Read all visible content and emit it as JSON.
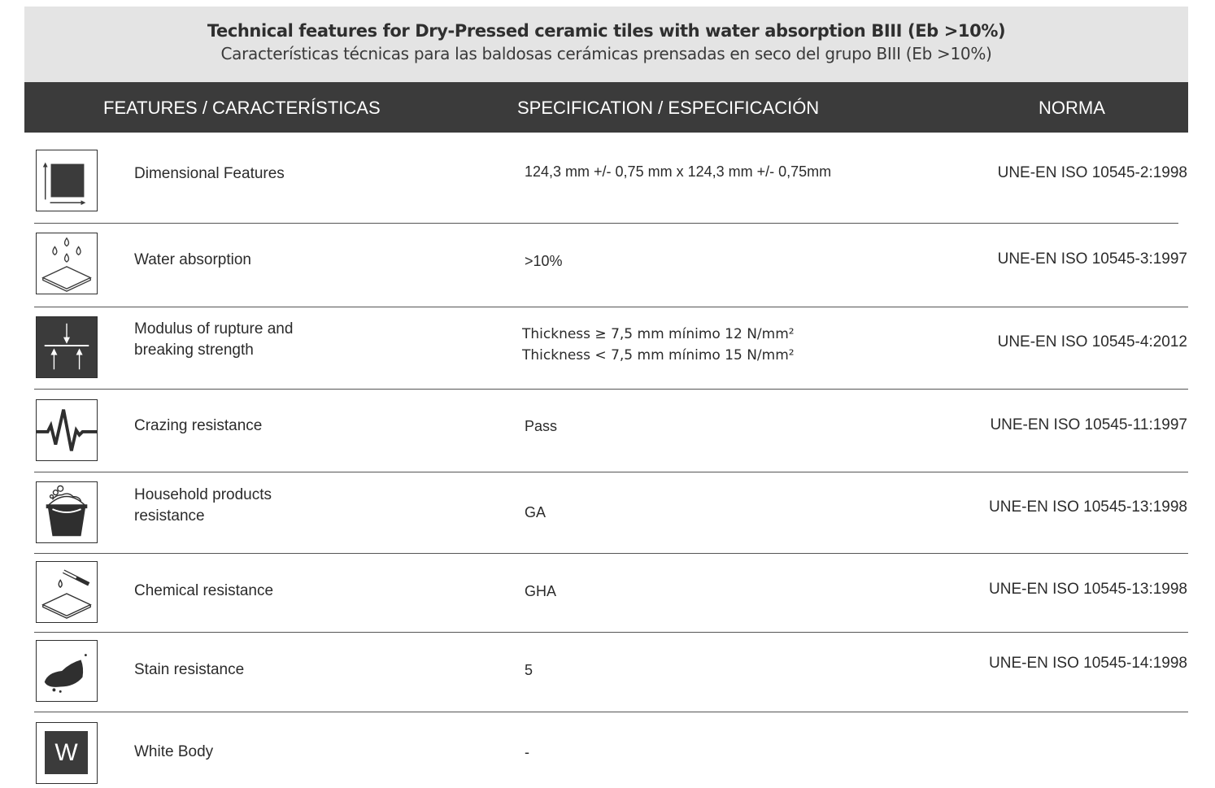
{
  "title": {
    "english": "Technical features for Dry-Pressed ceramic tiles with water absorption BIII (Eb >10%)",
    "spanish": "Características técnicas para las baldosas cerámicas prensadas en seco del grupo BIII (Eb >10%)"
  },
  "header": {
    "features": "FEATURES / CARACTERÍSTICAS",
    "specification": "SPECIFICATION / ESPECIFICACIÓN",
    "norma": "NORMA"
  },
  "rows": [
    {
      "icon": "dimensional-icon",
      "feature": "Dimensional Features",
      "spec": "124,3 mm +/- 0,75 mm x 124,3 mm +/- 0,75mm",
      "norma": "UNE-EN ISO 10545-2:1998"
    },
    {
      "icon": "water-drops-icon",
      "feature": "Water absorption",
      "spec": ">10%",
      "norma": "UNE-EN ISO 10545-3:1997"
    },
    {
      "icon": "rupture-force-icon",
      "feature_line1": "Modulus of rupture and",
      "feature_line2": "breaking strength",
      "spec_line1": "Thickness ≥ 7,5 mm mínimo 12 N/mm²",
      "spec_line2": "Thickness < 7,5 mm mínimo 15  N/mm²",
      "norma": "UNE-EN ISO 10545-4:2012"
    },
    {
      "icon": "crazing-wave-icon",
      "feature": "Crazing resistance",
      "spec": "Pass",
      "norma": "UNE-EN ISO 10545-11:1997"
    },
    {
      "icon": "bucket-icon",
      "feature_line1": "Household products",
      "feature_line2": "resistance",
      "spec": "GA",
      "norma": "UNE-EN ISO 10545-13:1998"
    },
    {
      "icon": "test-tube-icon",
      "feature": "Chemical resistance",
      "spec": "GHA",
      "norma": "UNE-EN ISO 10545-13:1998"
    },
    {
      "icon": "stain-icon",
      "feature": "Stain resistance",
      "spec": "5",
      "norma": "UNE-EN ISO 10545-14:1998"
    },
    {
      "icon": "white-body-icon",
      "icon_letter": "W",
      "feature": "White Body",
      "spec": "-",
      "norma": ""
    }
  ]
}
